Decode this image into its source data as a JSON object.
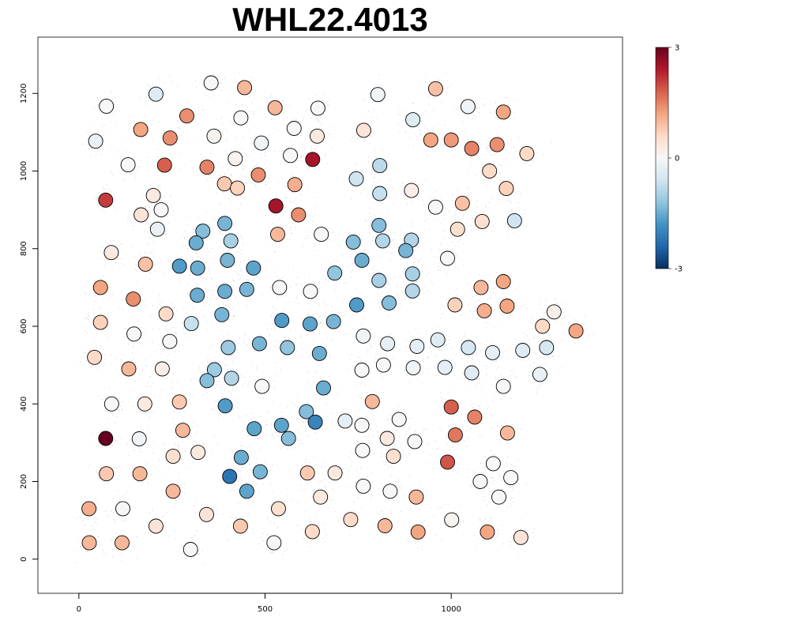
{
  "chart_data": {
    "type": "scatter",
    "title": "WHL22.4013",
    "xlabel": "",
    "ylabel": "",
    "xlim": [
      -110,
      1460
    ],
    "ylim": [
      -88,
      1345
    ],
    "xticks": [
      0,
      500,
      1000
    ],
    "yticks": [
      0,
      200,
      400,
      600,
      800,
      1000,
      1200
    ],
    "colorbar": {
      "min": -3,
      "max": 3,
      "ticks": [
        3,
        0,
        -3
      ],
      "colors": [
        "#053061",
        "#2166ac",
        "#4393c3",
        "#92c5de",
        "#d1e5f0",
        "#f7f7f7",
        "#fddbc7",
        "#f4a582",
        "#d6604d",
        "#b2182b",
        "#67001f"
      ]
    },
    "background_color": "#c8c8c8",
    "points": [
      [
        355,
        1227,
        0.0
      ],
      [
        445,
        1215,
        1.0
      ],
      [
        207,
        1198,
        -0.4
      ],
      [
        803,
        1197,
        -0.1
      ],
      [
        958,
        1212,
        0.9
      ],
      [
        74,
        1167,
        0.0
      ],
      [
        527,
        1163,
        1.0
      ],
      [
        642,
        1162,
        0.0
      ],
      [
        1045,
        1166,
        -0.1
      ],
      [
        1140,
        1152,
        1.2
      ],
      [
        290,
        1142,
        1.4
      ],
      [
        435,
        1137,
        0.0
      ],
      [
        897,
        1132,
        -0.4
      ],
      [
        166,
        1107,
        1.2
      ],
      [
        578,
        1110,
        0.0
      ],
      [
        765,
        1105,
        0.4
      ],
      [
        45,
        1077,
        -0.2
      ],
      [
        245,
        1085,
        1.4
      ],
      [
        363,
        1090,
        0.1
      ],
      [
        490,
        1072,
        -0.1
      ],
      [
        640,
        1090,
        0.3
      ],
      [
        945,
        1080,
        1.2
      ],
      [
        1000,
        1080,
        1.3
      ],
      [
        1055,
        1058,
        1.5
      ],
      [
        1123,
        1068,
        1.4
      ],
      [
        1203,
        1045,
        0.6
      ],
      [
        568,
        1040,
        0.0
      ],
      [
        628,
        1030,
        2.5
      ],
      [
        420,
        1032,
        0.1
      ],
      [
        132,
        1016,
        0.0
      ],
      [
        230,
        1015,
        1.8
      ],
      [
        344,
        1010,
        1.5
      ],
      [
        482,
        990,
        1.4
      ],
      [
        745,
        980,
        -0.6
      ],
      [
        808,
        1014,
        -0.8
      ],
      [
        1103,
        1000,
        0.6
      ],
      [
        72,
        925,
        2.1
      ],
      [
        200,
        937,
        0.3
      ],
      [
        391,
        967,
        0.8
      ],
      [
        426,
        956,
        0.7
      ],
      [
        580,
        965,
        1.1
      ],
      [
        808,
        942,
        -0.7
      ],
      [
        893,
        950,
        0.2
      ],
      [
        1148,
        955,
        0.7
      ],
      [
        167,
        887,
        0.4
      ],
      [
        221,
        900,
        0.0
      ],
      [
        529,
        910,
        2.5
      ],
      [
        590,
        887,
        1.4
      ],
      [
        958,
        907,
        0.0
      ],
      [
        1030,
        917,
        0.9
      ],
      [
        1083,
        870,
        0.5
      ],
      [
        1170,
        872,
        -0.6
      ],
      [
        211,
        850,
        -0.2
      ],
      [
        392,
        865,
        -1.4
      ],
      [
        333,
        845,
        -1.3
      ],
      [
        315,
        815,
        -1.5
      ],
      [
        408,
        820,
        -1.0
      ],
      [
        534,
        837,
        1.0
      ],
      [
        651,
        837,
        0.0
      ],
      [
        737,
        817,
        -1.3
      ],
      [
        806,
        860,
        -1.3
      ],
      [
        816,
        820,
        -0.9
      ],
      [
        893,
        822,
        -0.9
      ],
      [
        1017,
        850,
        0.5
      ],
      [
        87,
        790,
        0.3
      ],
      [
        179,
        760,
        0.9
      ],
      [
        270,
        755,
        -1.7
      ],
      [
        319,
        750,
        -1.5
      ],
      [
        399,
        770,
        -1.4
      ],
      [
        469,
        750,
        -1.6
      ],
      [
        760,
        770,
        -1.5
      ],
      [
        878,
        795,
        -1.4
      ],
      [
        990,
        775,
        0.0
      ],
      [
        58,
        700,
        1.2
      ],
      [
        146,
        670,
        1.4
      ],
      [
        318,
        680,
        -1.5
      ],
      [
        392,
        690,
        -1.5
      ],
      [
        451,
        695,
        -1.4
      ],
      [
        539,
        700,
        0.0
      ],
      [
        622,
        690,
        0.0
      ],
      [
        687,
        737,
        -1.2
      ],
      [
        806,
        718,
        -1.0
      ],
      [
        896,
        735,
        -1.0
      ],
      [
        1080,
        700,
        1.0
      ],
      [
        1140,
        715,
        1.2
      ],
      [
        1010,
        655,
        0.7
      ],
      [
        1089,
        640,
        1.1
      ],
      [
        1150,
        652,
        1.2
      ],
      [
        58,
        610,
        0.7
      ],
      [
        234,
        632,
        0.6
      ],
      [
        302,
        607,
        -0.7
      ],
      [
        384,
        630,
        -1.4
      ],
      [
        545,
        615,
        -1.7
      ],
      [
        621,
        606,
        -1.6
      ],
      [
        684,
        612,
        -1.4
      ],
      [
        746,
        655,
        -1.7
      ],
      [
        833,
        660,
        -1.3
      ],
      [
        896,
        691,
        -0.9
      ],
      [
        148,
        580,
        0.0
      ],
      [
        244,
        561,
        0.0
      ],
      [
        401,
        545,
        -1.1
      ],
      [
        485,
        555,
        -1.4
      ],
      [
        560,
        545,
        -1.2
      ],
      [
        646,
        530,
        -1.5
      ],
      [
        764,
        575,
        -0.1
      ],
      [
        829,
        555,
        -0.3
      ],
      [
        908,
        548,
        -0.3
      ],
      [
        964,
        565,
        -0.4
      ],
      [
        1046,
        545,
        -0.5
      ],
      [
        1111,
        532,
        -0.3
      ],
      [
        1192,
        538,
        -0.4
      ],
      [
        1256,
        545,
        -0.5
      ],
      [
        1276,
        637,
        0.2
      ],
      [
        1245,
        600,
        0.6
      ],
      [
        1335,
        588,
        1.2
      ],
      [
        42,
        520,
        0.6
      ],
      [
        134,
        490,
        1.0
      ],
      [
        224,
        490,
        0.2
      ],
      [
        364,
        488,
        -1.1
      ],
      [
        344,
        460,
        -1.3
      ],
      [
        410,
        466,
        -0.9
      ],
      [
        492,
        445,
        0.0
      ],
      [
        760,
        487,
        0.0
      ],
      [
        818,
        500,
        0.0
      ],
      [
        898,
        493,
        -0.1
      ],
      [
        983,
        494,
        -0.3
      ],
      [
        1055,
        480,
        -0.4
      ],
      [
        1140,
        445,
        0.0
      ],
      [
        1238,
        476,
        -0.2
      ],
      [
        88,
        400,
        0.0
      ],
      [
        177,
        400,
        0.3
      ],
      [
        270,
        405,
        0.8
      ],
      [
        393,
        395,
        -1.7
      ],
      [
        611,
        380,
        -1.3
      ],
      [
        657,
        441,
        -1.5
      ],
      [
        715,
        356,
        -0.3
      ],
      [
        760,
        345,
        0.0
      ],
      [
        788,
        406,
        1.0
      ],
      [
        860,
        360,
        0.0
      ],
      [
        1000,
        392,
        1.8
      ],
      [
        1063,
        366,
        1.5
      ],
      [
        72,
        311,
        3.0
      ],
      [
        162,
        310,
        -0.1
      ],
      [
        279,
        332,
        1.0
      ],
      [
        471,
        336,
        -1.6
      ],
      [
        544,
        345,
        -1.6
      ],
      [
        563,
        311,
        -1.3
      ],
      [
        635,
        353,
        -2.0
      ],
      [
        828,
        311,
        0.3
      ],
      [
        902,
        303,
        0.0
      ],
      [
        1011,
        320,
        1.6
      ],
      [
        1151,
        325,
        1.0
      ],
      [
        74,
        220,
        0.8
      ],
      [
        164,
        220,
        1.0
      ],
      [
        253,
        265,
        0.5
      ],
      [
        320,
        275,
        0.3
      ],
      [
        436,
        262,
        -1.5
      ],
      [
        487,
        225,
        -1.4
      ],
      [
        405,
        213,
        -2.2
      ],
      [
        614,
        222,
        0.8
      ],
      [
        688,
        222,
        0.3
      ],
      [
        762,
        280,
        0.0
      ],
      [
        845,
        265,
        0.5
      ],
      [
        990,
        250,
        1.9
      ],
      [
        1113,
        246,
        0.0
      ],
      [
        1078,
        200,
        0.0
      ],
      [
        1160,
        210,
        0.0
      ],
      [
        27,
        130,
        1.1
      ],
      [
        118,
        130,
        0.0
      ],
      [
        253,
        175,
        1.0
      ],
      [
        451,
        175,
        -1.6
      ],
      [
        536,
        130,
        0.5
      ],
      [
        649,
        160,
        0.3
      ],
      [
        764,
        188,
        0.0
      ],
      [
        836,
        175,
        0.0
      ],
      [
        906,
        160,
        1.0
      ],
      [
        1128,
        160,
        0.0
      ],
      [
        28,
        42,
        1.0
      ],
      [
        116,
        42,
        1.0
      ],
      [
        207,
        85,
        0.4
      ],
      [
        300,
        25,
        0.0
      ],
      [
        343,
        115,
        0.4
      ],
      [
        434,
        85,
        0.8
      ],
      [
        524,
        42,
        0.0
      ],
      [
        627,
        71,
        0.6
      ],
      [
        730,
        102,
        0.6
      ],
      [
        822,
        86,
        1.0
      ],
      [
        911,
        70,
        1.2
      ],
      [
        1001,
        101,
        0.1
      ],
      [
        1097,
        70,
        1.2
      ],
      [
        1187,
        56,
        0.4
      ]
    ]
  }
}
